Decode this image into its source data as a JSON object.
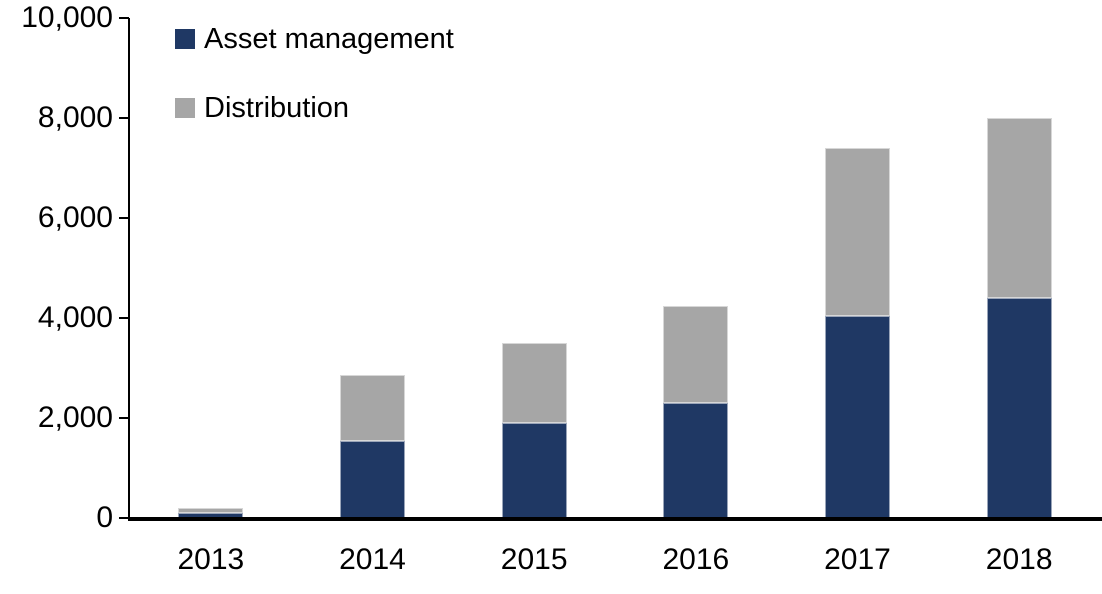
{
  "chart_data": {
    "type": "bar",
    "stacked": true,
    "title": "",
    "xlabel": "",
    "ylabel": "",
    "categories": [
      "2013",
      "2014",
      "2015",
      "2016",
      "2017",
      "2018"
    ],
    "series": [
      {
        "name": "Asset management",
        "color": "#1F3864",
        "values": [
          100,
          1550,
          1900,
          2300,
          4050,
          4400
        ]
      },
      {
        "name": "Distribution",
        "color": "#A6A6A6",
        "values": [
          100,
          1320,
          1600,
          1950,
          3350,
          3600
        ]
      }
    ],
    "totals": [
      200,
      2870,
      3500,
      4250,
      7400,
      8000
    ],
    "ylim": [
      0,
      10000
    ],
    "yticks": [
      0,
      2000,
      4000,
      6000,
      8000,
      10000
    ],
    "ytick_labels": [
      "0",
      "2,000",
      "4,000",
      "6,000",
      "8,000",
      "10,000"
    ],
    "grid": false,
    "legend_position": "top-left-inside"
  },
  "legend": {
    "items": [
      {
        "label": "Asset management",
        "color": "#1F3864"
      },
      {
        "label": "Distribution",
        "color": "#A6A6A6"
      }
    ]
  },
  "colors": {
    "axis": "#000000",
    "text": "#000000",
    "background": "#FFFFFF",
    "navy": "#1F3864",
    "gray": "#A6A6A6"
  }
}
